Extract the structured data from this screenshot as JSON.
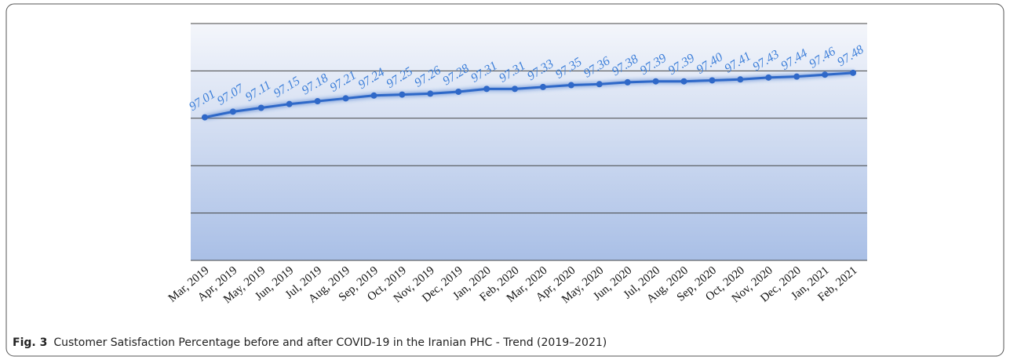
{
  "chart_data": {
    "type": "line",
    "categories": [
      "Mar, 2019",
      "Apr, 2019",
      "May, 2019",
      "Jun, 2019",
      "Jul, 2019",
      "Aug, 2019",
      "Sep, 2019",
      "Oct, 2019",
      "Nov, 2019",
      "Dec, 2019",
      "Jan, 2020",
      "Feb, 2020",
      "Mar, 2020",
      "Apr, 2020",
      "May, 2020",
      "Jun, 2020",
      "Jul, 2020",
      "Aug, 2020",
      "Sep, 2020",
      "Oct, 2020",
      "Nov, 2020",
      "Dec, 2020",
      "Jan, 2021",
      "Feb, 2021"
    ],
    "values": [
      97.01,
      97.07,
      97.11,
      97.15,
      97.18,
      97.21,
      97.24,
      97.25,
      97.26,
      97.28,
      97.31,
      97.31,
      97.33,
      97.35,
      97.36,
      97.38,
      97.39,
      97.39,
      97.4,
      97.41,
      97.43,
      97.44,
      97.46,
      97.48
    ],
    "value_labels": [
      "97.01",
      "97.07",
      "97.11",
      "97.15",
      "97.18",
      "97.21",
      "97.24",
      "97.25",
      "97.26",
      "97.28",
      "97.31",
      "97.31",
      "97.33",
      "97.35",
      "97.36",
      "97.38",
      "97.39",
      "97.39",
      "97.40",
      "97.41",
      "97.43",
      "97.44",
      "97.46",
      "97.48"
    ],
    "color": "#2f68c8",
    "ylim": [
      95.5,
      98.0
    ],
    "yticks": [
      95.5,
      96,
      96.5,
      97,
      97.5,
      98
    ],
    "grid": true
  },
  "caption": {
    "label": "Fig. 3",
    "text": "Customer Satisfaction Percentage before and after COVID-19 in the Iranian PHC - Trend (2019–2021)"
  }
}
